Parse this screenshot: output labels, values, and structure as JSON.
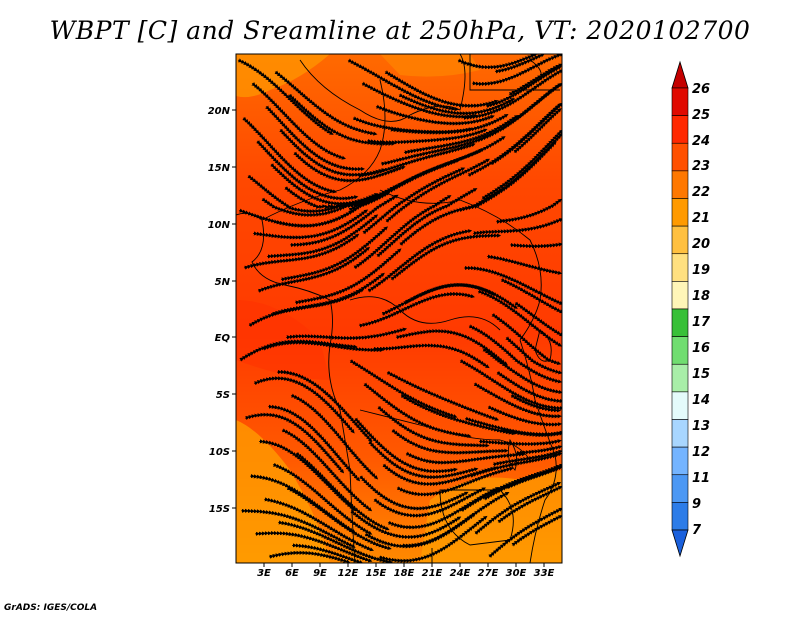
{
  "title": "WBPT [C] and Sreamline at 250hPa, VT: 2020102700",
  "footer": "GrADS: IGES/COLA",
  "map": {
    "lon_labels": [
      "3E",
      "6E",
      "9E",
      "12E",
      "15E",
      "18E",
      "21E",
      "24E",
      "27E",
      "30E",
      "33E"
    ],
    "lat_labels": [
      "20N",
      "15N",
      "10N",
      "5N",
      "EQ",
      "5S",
      "10S",
      "15S"
    ],
    "palette": {
      "deep_orange": "#ff3a00",
      "orange": "#ff6a00",
      "light_orange": "#ff9600",
      "amber": "#ffb32f",
      "streamline": "#000000"
    }
  },
  "colorbar": {
    "levels": [
      "26",
      "25",
      "24",
      "23",
      "22",
      "21",
      "20",
      "19",
      "18",
      "17",
      "16",
      "15",
      "14",
      "13",
      "12",
      "11",
      "9",
      "7"
    ],
    "colors": [
      "#c40000",
      "#e00a00",
      "#ff2800",
      "#ff5000",
      "#ff7800",
      "#ff9a00",
      "#ffc040",
      "#ffe080",
      "#fff6b8",
      "#38c038",
      "#70dd70",
      "#a8eea8",
      "#e4fbfb",
      "#a8d6ff",
      "#74b4ff",
      "#4c98f4",
      "#2c7ce8",
      "#1a60dc"
    ]
  }
}
